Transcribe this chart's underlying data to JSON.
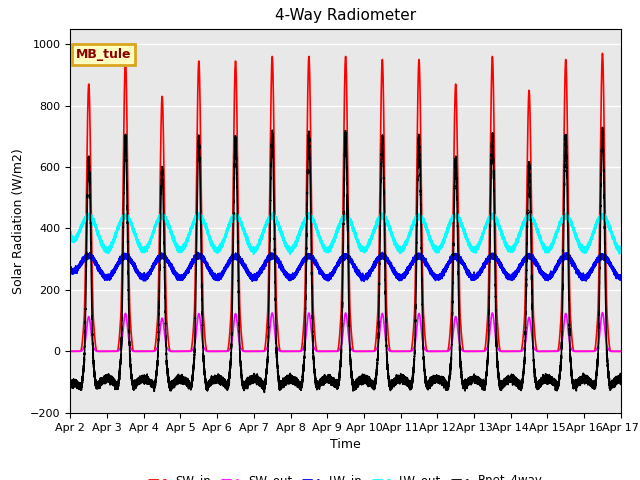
{
  "title": "4-Way Radiometer",
  "xlabel": "Time",
  "ylabel": "Solar Radiation (W/m2)",
  "ylim": [
    -200,
    1050
  ],
  "xlim": [
    0,
    15
  ],
  "station_label": "MB_tule",
  "x_tick_labels": [
    "Apr 2",
    "Apr 3",
    "Apr 4",
    "Apr 5",
    "Apr 6",
    "Apr 7",
    "Apr 8",
    "Apr 9",
    "Apr 10",
    "Apr 11",
    "Apr 12",
    "Apr 13",
    "Apr 14",
    "Apr 15",
    "Apr 16",
    "Apr 17"
  ],
  "x_tick_positions": [
    0,
    1,
    2,
    3,
    4,
    5,
    6,
    7,
    8,
    9,
    10,
    11,
    12,
    13,
    14,
    15
  ],
  "series": {
    "SW_in": {
      "color": "red",
      "lw": 1.2
    },
    "SW_out": {
      "color": "magenta",
      "lw": 1.2
    },
    "LW_in": {
      "color": "blue",
      "lw": 1.2
    },
    "LW_out": {
      "color": "cyan",
      "lw": 1.2
    },
    "Rnet_4way": {
      "color": "black",
      "lw": 1.2
    }
  },
  "background_color": "#e8e8e8",
  "grid_color": "white",
  "num_days": 15,
  "pts_per_day": 1440,
  "sw_in_peaks": [
    870,
    950,
    830,
    945,
    945,
    960,
    960,
    960,
    950,
    950,
    870,
    960,
    850,
    950,
    970
  ],
  "sw_out_ratio": 0.13,
  "lw_in_base": 275,
  "lw_in_amp": 35,
  "lw_out_base": 385,
  "lw_out_amp": 55,
  "rnet_night": -100
}
